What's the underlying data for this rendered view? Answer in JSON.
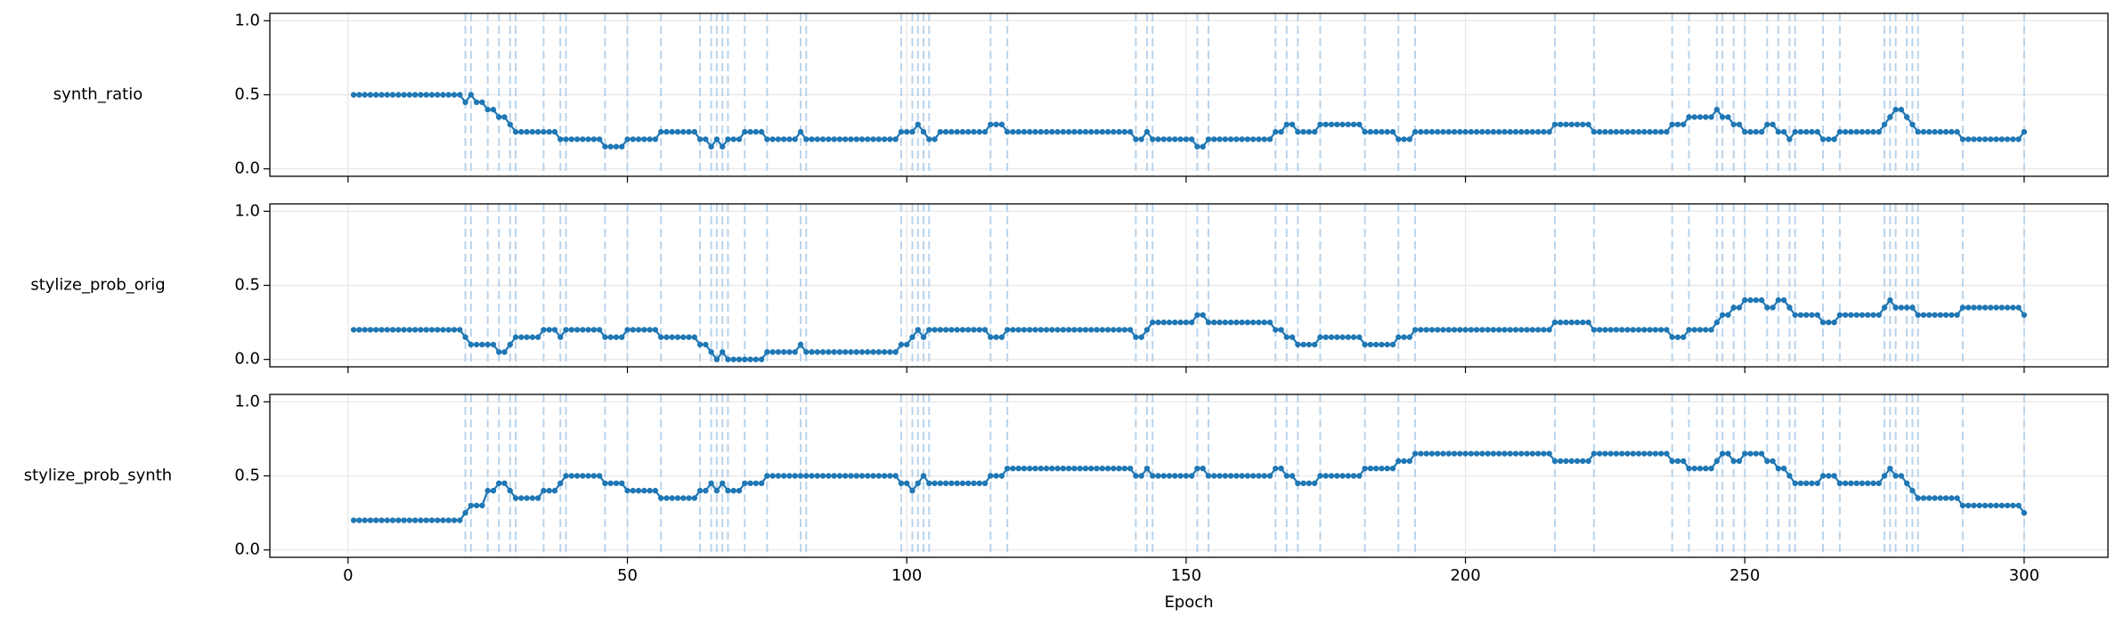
{
  "chart_data": {
    "type": "line",
    "xlabel": "Epoch",
    "xlim": [
      -14,
      315
    ],
    "xticks": [
      0,
      50,
      100,
      150,
      200,
      250,
      300
    ],
    "grid": true,
    "vline_color": "#b9d3ea",
    "change_epochs": [
      21,
      22,
      25,
      27,
      29,
      30,
      35,
      38,
      39,
      46,
      50,
      56,
      63,
      65,
      66,
      67,
      68,
      71,
      75,
      81,
      82,
      99,
      101,
      102,
      103,
      104,
      115,
      118,
      141,
      143,
      144,
      152,
      154,
      166,
      168,
      170,
      174,
      182,
      188,
      191,
      216,
      223,
      237,
      240,
      245,
      246,
      248,
      250,
      254,
      256,
      258,
      259,
      264,
      267,
      275,
      276,
      277,
      279,
      280,
      281,
      289,
      300
    ],
    "x": [
      1,
      2,
      3,
      4,
      5,
      6,
      7,
      8,
      9,
      10,
      11,
      12,
      13,
      14,
      15,
      16,
      17,
      18,
      19,
      20,
      21,
      22,
      23,
      24,
      25,
      26,
      27,
      28,
      29,
      30,
      31,
      32,
      33,
      34,
      35,
      36,
      37,
      38,
      39,
      40,
      41,
      42,
      43,
      44,
      45,
      46,
      47,
      48,
      49,
      50,
      51,
      52,
      53,
      54,
      55,
      56,
      57,
      58,
      59,
      60,
      61,
      62,
      63,
      64,
      65,
      66,
      67,
      68,
      69,
      70,
      71,
      72,
      73,
      74,
      75,
      76,
      77,
      78,
      79,
      80,
      81,
      82,
      83,
      84,
      85,
      86,
      87,
      88,
      89,
      90,
      91,
      92,
      93,
      94,
      95,
      96,
      97,
      98,
      99,
      100,
      101,
      102,
      103,
      104,
      105,
      106,
      107,
      108,
      109,
      110,
      111,
      112,
      113,
      114,
      115,
      116,
      117,
      118,
      119,
      120,
      121,
      122,
      123,
      124,
      125,
      126,
      127,
      128,
      129,
      130,
      131,
      132,
      133,
      134,
      135,
      136,
      137,
      138,
      139,
      140,
      141,
      142,
      143,
      144,
      145,
      146,
      147,
      148,
      149,
      150,
      151,
      152,
      153,
      154,
      155,
      156,
      157,
      158,
      159,
      160,
      161,
      162,
      163,
      164,
      165,
      166,
      167,
      168,
      169,
      170,
      171,
      172,
      173,
      174,
      175,
      176,
      177,
      178,
      179,
      180,
      181,
      182,
      183,
      184,
      185,
      186,
      187,
      188,
      189,
      190,
      191,
      192,
      193,
      194,
      195,
      196,
      197,
      198,
      199,
      200,
      201,
      202,
      203,
      204,
      205,
      206,
      207,
      208,
      209,
      210,
      211,
      212,
      213,
      214,
      215,
      216,
      217,
      218,
      219,
      220,
      221,
      222,
      223,
      224,
      225,
      226,
      227,
      228,
      229,
      230,
      231,
      232,
      233,
      234,
      235,
      236,
      237,
      238,
      239,
      240,
      241,
      242,
      243,
      244,
      245,
      246,
      247,
      248,
      249,
      250,
      251,
      252,
      253,
      254,
      255,
      256,
      257,
      258,
      259,
      260,
      261,
      262,
      263,
      264,
      265,
      266,
      267,
      268,
      269,
      270,
      271,
      272,
      273,
      274,
      275,
      276,
      277,
      278,
      279,
      280,
      281,
      282,
      283,
      284,
      285,
      286,
      287,
      288,
      289,
      290,
      291,
      292,
      293,
      294,
      295,
      296,
      297,
      298,
      299,
      300
    ],
    "series": [
      {
        "name": "synth_ratio",
        "color": "#1f77b4",
        "ylim": [
          -0.05,
          1.05
        ],
        "yticks": [
          {
            "value": 0,
            "label": "0.0"
          },
          {
            "value": 0.5,
            "label": "0.5"
          },
          {
            "value": 1,
            "label": "1.0"
          }
        ],
        "values": [
          0.5,
          0.5,
          0.5,
          0.5,
          0.5,
          0.5,
          0.5,
          0.5,
          0.5,
          0.5,
          0.5,
          0.5,
          0.5,
          0.5,
          0.5,
          0.5,
          0.5,
          0.5,
          0.5,
          0.5,
          0.45,
          0.5,
          0.45,
          0.45,
          0.4,
          0.4,
          0.35,
          0.35,
          0.3,
          0.25,
          0.25,
          0.25,
          0.25,
          0.25,
          0.25,
          0.25,
          0.25,
          0.2,
          0.2,
          0.2,
          0.2,
          0.2,
          0.2,
          0.2,
          0.2,
          0.15,
          0.15,
          0.15,
          0.15,
          0.2,
          0.2,
          0.2,
          0.2,
          0.2,
          0.2,
          0.25,
          0.25,
          0.25,
          0.25,
          0.25,
          0.25,
          0.25,
          0.2,
          0.2,
          0.15,
          0.2,
          0.15,
          0.2,
          0.2,
          0.2,
          0.25,
          0.25,
          0.25,
          0.25,
          0.2,
          0.2,
          0.2,
          0.2,
          0.2,
          0.2,
          0.25,
          0.2,
          0.2,
          0.2,
          0.2,
          0.2,
          0.2,
          0.2,
          0.2,
          0.2,
          0.2,
          0.2,
          0.2,
          0.2,
          0.2,
          0.2,
          0.2,
          0.2,
          0.25,
          0.25,
          0.25,
          0.3,
          0.25,
          0.2,
          0.2,
          0.25,
          0.25,
          0.25,
          0.25,
          0.25,
          0.25,
          0.25,
          0.25,
          0.25,
          0.3,
          0.3,
          0.3,
          0.25,
          0.25,
          0.25,
          0.25,
          0.25,
          0.25,
          0.25,
          0.25,
          0.25,
          0.25,
          0.25,
          0.25,
          0.25,
          0.25,
          0.25,
          0.25,
          0.25,
          0.25,
          0.25,
          0.25,
          0.25,
          0.25,
          0.25,
          0.2,
          0.2,
          0.25,
          0.2,
          0.2,
          0.2,
          0.2,
          0.2,
          0.2,
          0.2,
          0.2,
          0.15,
          0.15,
          0.2,
          0.2,
          0.2,
          0.2,
          0.2,
          0.2,
          0.2,
          0.2,
          0.2,
          0.2,
          0.2,
          0.2,
          0.25,
          0.25,
          0.3,
          0.3,
          0.25,
          0.25,
          0.25,
          0.25,
          0.3,
          0.3,
          0.3,
          0.3,
          0.3,
          0.3,
          0.3,
          0.3,
          0.25,
          0.25,
          0.25,
          0.25,
          0.25,
          0.25,
          0.2,
          0.2,
          0.2,
          0.25,
          0.25,
          0.25,
          0.25,
          0.25,
          0.25,
          0.25,
          0.25,
          0.25,
          0.25,
          0.25,
          0.25,
          0.25,
          0.25,
          0.25,
          0.25,
          0.25,
          0.25,
          0.25,
          0.25,
          0.25,
          0.25,
          0.25,
          0.25,
          0.25,
          0.3,
          0.3,
          0.3,
          0.3,
          0.3,
          0.3,
          0.3,
          0.25,
          0.25,
          0.25,
          0.25,
          0.25,
          0.25,
          0.25,
          0.25,
          0.25,
          0.25,
          0.25,
          0.25,
          0.25,
          0.25,
          0.3,
          0.3,
          0.3,
          0.35,
          0.35,
          0.35,
          0.35,
          0.35,
          0.4,
          0.35,
          0.35,
          0.3,
          0.3,
          0.25,
          0.25,
          0.25,
          0.25,
          0.3,
          0.3,
          0.25,
          0.25,
          0.2,
          0.25,
          0.25,
          0.25,
          0.25,
          0.25,
          0.2,
          0.2,
          0.2,
          0.25,
          0.25,
          0.25,
          0.25,
          0.25,
          0.25,
          0.25,
          0.25,
          0.3,
          0.35,
          0.4,
          0.4,
          0.35,
          0.3,
          0.25,
          0.25,
          0.25,
          0.25,
          0.25,
          0.25,
          0.25,
          0.25,
          0.2,
          0.2,
          0.2,
          0.2,
          0.2,
          0.2,
          0.2,
          0.2,
          0.2,
          0.2,
          0.2,
          0.25
        ]
      },
      {
        "name": "stylize_prob_orig",
        "color": "#1f77b4",
        "ylim": [
          -0.05,
          1.05
        ],
        "yticks": [
          {
            "value": 0,
            "label": "0.0"
          },
          {
            "value": 0.5,
            "label": "0.5"
          },
          {
            "value": 1,
            "label": "1.0"
          }
        ],
        "values": [
          0.2,
          0.2,
          0.2,
          0.2,
          0.2,
          0.2,
          0.2,
          0.2,
          0.2,
          0.2,
          0.2,
          0.2,
          0.2,
          0.2,
          0.2,
          0.2,
          0.2,
          0.2,
          0.2,
          0.2,
          0.15,
          0.1,
          0.1,
          0.1,
          0.1,
          0.1,
          0.05,
          0.05,
          0.1,
          0.15,
          0.15,
          0.15,
          0.15,
          0.15,
          0.2,
          0.2,
          0.2,
          0.15,
          0.2,
          0.2,
          0.2,
          0.2,
          0.2,
          0.2,
          0.2,
          0.15,
          0.15,
          0.15,
          0.15,
          0.2,
          0.2,
          0.2,
          0.2,
          0.2,
          0.2,
          0.15,
          0.15,
          0.15,
          0.15,
          0.15,
          0.15,
          0.15,
          0.1,
          0.1,
          0.05,
          0,
          0.05,
          0,
          0,
          0,
          0,
          0,
          0,
          0,
          0.05,
          0.05,
          0.05,
          0.05,
          0.05,
          0.05,
          0.1,
          0.05,
          0.05,
          0.05,
          0.05,
          0.05,
          0.05,
          0.05,
          0.05,
          0.05,
          0.05,
          0.05,
          0.05,
          0.05,
          0.05,
          0.05,
          0.05,
          0.05,
          0.1,
          0.1,
          0.15,
          0.2,
          0.15,
          0.2,
          0.2,
          0.2,
          0.2,
          0.2,
          0.2,
          0.2,
          0.2,
          0.2,
          0.2,
          0.2,
          0.15,
          0.15,
          0.15,
          0.2,
          0.2,
          0.2,
          0.2,
          0.2,
          0.2,
          0.2,
          0.2,
          0.2,
          0.2,
          0.2,
          0.2,
          0.2,
          0.2,
          0.2,
          0.2,
          0.2,
          0.2,
          0.2,
          0.2,
          0.2,
          0.2,
          0.2,
          0.15,
          0.15,
          0.2,
          0.25,
          0.25,
          0.25,
          0.25,
          0.25,
          0.25,
          0.25,
          0.25,
          0.3,
          0.3,
          0.25,
          0.25,
          0.25,
          0.25,
          0.25,
          0.25,
          0.25,
          0.25,
          0.25,
          0.25,
          0.25,
          0.25,
          0.2,
          0.2,
          0.15,
          0.15,
          0.1,
          0.1,
          0.1,
          0.1,
          0.15,
          0.15,
          0.15,
          0.15,
          0.15,
          0.15,
          0.15,
          0.15,
          0.1,
          0.1,
          0.1,
          0.1,
          0.1,
          0.1,
          0.15,
          0.15,
          0.15,
          0.2,
          0.2,
          0.2,
          0.2,
          0.2,
          0.2,
          0.2,
          0.2,
          0.2,
          0.2,
          0.2,
          0.2,
          0.2,
          0.2,
          0.2,
          0.2,
          0.2,
          0.2,
          0.2,
          0.2,
          0.2,
          0.2,
          0.2,
          0.2,
          0.2,
          0.25,
          0.25,
          0.25,
          0.25,
          0.25,
          0.25,
          0.25,
          0.2,
          0.2,
          0.2,
          0.2,
          0.2,
          0.2,
          0.2,
          0.2,
          0.2,
          0.2,
          0.2,
          0.2,
          0.2,
          0.2,
          0.15,
          0.15,
          0.15,
          0.2,
          0.2,
          0.2,
          0.2,
          0.2,
          0.25,
          0.3,
          0.3,
          0.35,
          0.35,
          0.4,
          0.4,
          0.4,
          0.4,
          0.35,
          0.35,
          0.4,
          0.4,
          0.35,
          0.3,
          0.3,
          0.3,
          0.3,
          0.3,
          0.25,
          0.25,
          0.25,
          0.3,
          0.3,
          0.3,
          0.3,
          0.3,
          0.3,
          0.3,
          0.3,
          0.35,
          0.4,
          0.35,
          0.35,
          0.35,
          0.35,
          0.3,
          0.3,
          0.3,
          0.3,
          0.3,
          0.3,
          0.3,
          0.3,
          0.35,
          0.35,
          0.35,
          0.35,
          0.35,
          0.35,
          0.35,
          0.35,
          0.35,
          0.35,
          0.35,
          0.3
        ]
      },
      {
        "name": "stylize_prob_synth",
        "color": "#1f77b4",
        "ylim": [
          -0.05,
          1.05
        ],
        "yticks": [
          {
            "value": 0,
            "label": "0.0"
          },
          {
            "value": 0.5,
            "label": "0.5"
          },
          {
            "value": 1,
            "label": "1.0"
          }
        ],
        "values": [
          0.2,
          0.2,
          0.2,
          0.2,
          0.2,
          0.2,
          0.2,
          0.2,
          0.2,
          0.2,
          0.2,
          0.2,
          0.2,
          0.2,
          0.2,
          0.2,
          0.2,
          0.2,
          0.2,
          0.2,
          0.25,
          0.3,
          0.3,
          0.3,
          0.4,
          0.4,
          0.45,
          0.45,
          0.4,
          0.35,
          0.35,
          0.35,
          0.35,
          0.35,
          0.4,
          0.4,
          0.4,
          0.45,
          0.5,
          0.5,
          0.5,
          0.5,
          0.5,
          0.5,
          0.5,
          0.45,
          0.45,
          0.45,
          0.45,
          0.4,
          0.4,
          0.4,
          0.4,
          0.4,
          0.4,
          0.35,
          0.35,
          0.35,
          0.35,
          0.35,
          0.35,
          0.35,
          0.4,
          0.4,
          0.45,
          0.4,
          0.45,
          0.4,
          0.4,
          0.4,
          0.45,
          0.45,
          0.45,
          0.45,
          0.5,
          0.5,
          0.5,
          0.5,
          0.5,
          0.5,
          0.5,
          0.5,
          0.5,
          0.5,
          0.5,
          0.5,
          0.5,
          0.5,
          0.5,
          0.5,
          0.5,
          0.5,
          0.5,
          0.5,
          0.5,
          0.5,
          0.5,
          0.5,
          0.45,
          0.45,
          0.4,
          0.45,
          0.5,
          0.45,
          0.45,
          0.45,
          0.45,
          0.45,
          0.45,
          0.45,
          0.45,
          0.45,
          0.45,
          0.45,
          0.5,
          0.5,
          0.5,
          0.55,
          0.55,
          0.55,
          0.55,
          0.55,
          0.55,
          0.55,
          0.55,
          0.55,
          0.55,
          0.55,
          0.55,
          0.55,
          0.55,
          0.55,
          0.55,
          0.55,
          0.55,
          0.55,
          0.55,
          0.55,
          0.55,
          0.55,
          0.5,
          0.5,
          0.55,
          0.5,
          0.5,
          0.5,
          0.5,
          0.5,
          0.5,
          0.5,
          0.5,
          0.55,
          0.55,
          0.5,
          0.5,
          0.5,
          0.5,
          0.5,
          0.5,
          0.5,
          0.5,
          0.5,
          0.5,
          0.5,
          0.5,
          0.55,
          0.55,
          0.5,
          0.5,
          0.45,
          0.45,
          0.45,
          0.45,
          0.5,
          0.5,
          0.5,
          0.5,
          0.5,
          0.5,
          0.5,
          0.5,
          0.55,
          0.55,
          0.55,
          0.55,
          0.55,
          0.55,
          0.6,
          0.6,
          0.6,
          0.65,
          0.65,
          0.65,
          0.65,
          0.65,
          0.65,
          0.65,
          0.65,
          0.65,
          0.65,
          0.65,
          0.65,
          0.65,
          0.65,
          0.65,
          0.65,
          0.65,
          0.65,
          0.65,
          0.65,
          0.65,
          0.65,
          0.65,
          0.65,
          0.65,
          0.6,
          0.6,
          0.6,
          0.6,
          0.6,
          0.6,
          0.6,
          0.65,
          0.65,
          0.65,
          0.65,
          0.65,
          0.65,
          0.65,
          0.65,
          0.65,
          0.65,
          0.65,
          0.65,
          0.65,
          0.65,
          0.6,
          0.6,
          0.6,
          0.55,
          0.55,
          0.55,
          0.55,
          0.55,
          0.6,
          0.65,
          0.65,
          0.6,
          0.6,
          0.65,
          0.65,
          0.65,
          0.65,
          0.6,
          0.6,
          0.55,
          0.55,
          0.5,
          0.45,
          0.45,
          0.45,
          0.45,
          0.45,
          0.5,
          0.5,
          0.5,
          0.45,
          0.45,
          0.45,
          0.45,
          0.45,
          0.45,
          0.45,
          0.45,
          0.5,
          0.55,
          0.5,
          0.5,
          0.45,
          0.4,
          0.35,
          0.35,
          0.35,
          0.35,
          0.35,
          0.35,
          0.35,
          0.35,
          0.3,
          0.3,
          0.3,
          0.3,
          0.3,
          0.3,
          0.3,
          0.3,
          0.3,
          0.3,
          0.3,
          0.25
        ]
      }
    ]
  }
}
